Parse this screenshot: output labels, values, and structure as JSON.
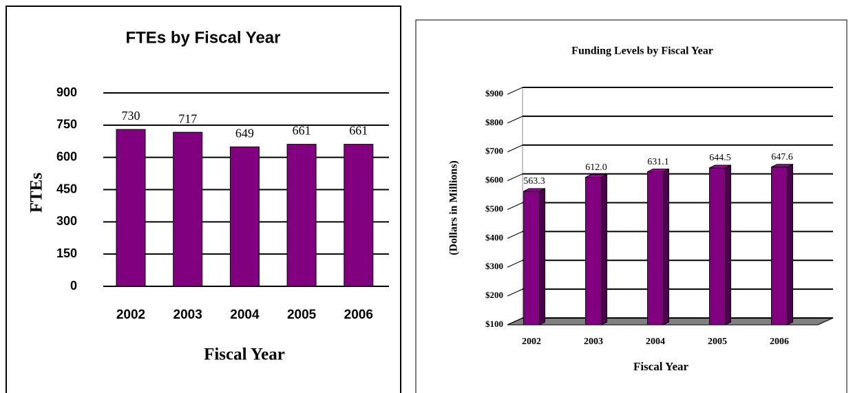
{
  "chart_data": [
    {
      "type": "bar",
      "title": "FTEs by Fiscal Year",
      "xlabel": "Fiscal Year",
      "ylabel": "FTEs",
      "categories": [
        "2002",
        "2003",
        "2004",
        "2005",
        "2006"
      ],
      "values": [
        730,
        717,
        649,
        661,
        661
      ],
      "color": "#800080",
      "ylim": [
        0,
        900
      ],
      "yticks": [
        0,
        150,
        300,
        450,
        600,
        750,
        900
      ],
      "grid": true
    },
    {
      "type": "bar",
      "title": "Funding Levels by Fiscal Year",
      "xlabel": "Fiscal Year",
      "ylabel": "(Dollars in Millions)",
      "categories": [
        "2002",
        "2003",
        "2004",
        "2005",
        "2006"
      ],
      "values": [
        563.3,
        612.0,
        631.1,
        644.5,
        647.6
      ],
      "value_labels": [
        "563.3",
        "612.0",
        "631.1",
        "644.5",
        "647.6"
      ],
      "color": "#800080",
      "three_d": true,
      "ylim": [
        100,
        900
      ],
      "yticks": [
        {
          "value": 100,
          "label": "$100"
        },
        {
          "value": 200,
          "label": "$200"
        },
        {
          "value": 300,
          "label": "$300"
        },
        {
          "value": 400,
          "label": "$400"
        },
        {
          "value": 500,
          "label": "$500"
        },
        {
          "value": 600,
          "label": "$600"
        },
        {
          "value": 700,
          "label": "$700"
        },
        {
          "value": 800,
          "label": "$800"
        },
        {
          "value": 900,
          "label": "$900"
        }
      ],
      "grid": true
    }
  ]
}
